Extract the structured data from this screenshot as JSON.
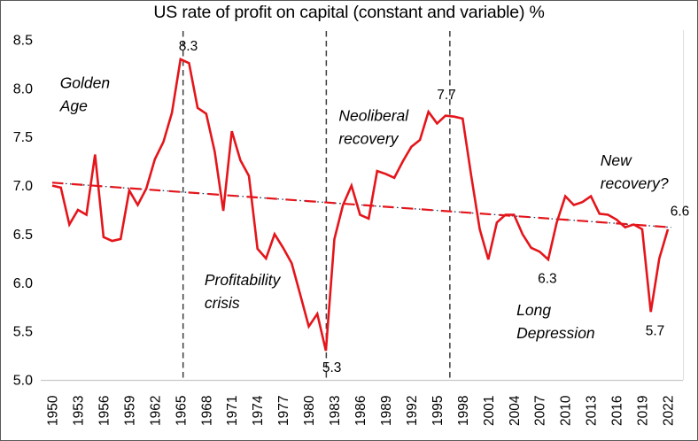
{
  "title": "US rate of profit on capital (constant and variable) %",
  "chart_data": {
    "type": "line",
    "title": "US rate of profit on capital (constant and variable) %",
    "xlabel": "",
    "ylabel": "",
    "ylim": [
      5.0,
      8.5
    ],
    "y_ticks": [
      8.5,
      8.0,
      7.5,
      7.0,
      6.5,
      6.0,
      5.5,
      5.0
    ],
    "x_ticks": [
      1950,
      1953,
      1956,
      1959,
      1962,
      1965,
      1968,
      1971,
      1974,
      1977,
      1980,
      1983,
      1986,
      1989,
      1992,
      1995,
      1998,
      2001,
      2004,
      2007,
      2010,
      2013,
      2016,
      2019,
      2022
    ],
    "grid": false,
    "legend": false,
    "line_color": "#e4151b",
    "vertical_line_color": "#3d3d3d",
    "axis_line_color": "#c9c9c9",
    "series": [
      {
        "name": "US rate of profit %",
        "x": [
          1950,
          1951,
          1952,
          1953,
          1954,
          1955,
          1956,
          1957,
          1958,
          1959,
          1960,
          1961,
          1962,
          1963,
          1964,
          1965,
          1966,
          1967,
          1968,
          1969,
          1970,
          1971,
          1972,
          1973,
          1974,
          1975,
          1976,
          1977,
          1978,
          1979,
          1980,
          1981,
          1982,
          1983,
          1984,
          1985,
          1986,
          1987,
          1988,
          1989,
          1990,
          1991,
          1992,
          1993,
          1994,
          1995,
          1996,
          1997,
          1998,
          1999,
          2000,
          2001,
          2002,
          2003,
          2004,
          2005,
          2006,
          2007,
          2008,
          2009,
          2010,
          2011,
          2012,
          2013,
          2014,
          2015,
          2016,
          2017,
          2018,
          2019,
          2020,
          2021,
          2022
        ],
        "values": [
          7.0,
          6.98,
          6.6,
          6.75,
          6.7,
          7.32,
          6.47,
          6.43,
          6.45,
          6.95,
          6.8,
          6.97,
          7.27,
          7.45,
          7.75,
          8.3,
          8.26,
          7.8,
          7.74,
          7.35,
          6.74,
          7.56,
          7.26,
          7.1,
          6.35,
          6.25,
          6.5,
          6.36,
          6.2,
          5.88,
          5.55,
          5.68,
          5.3,
          6.45,
          6.8,
          7.0,
          6.7,
          6.66,
          7.15,
          7.12,
          7.08,
          7.25,
          7.4,
          7.47,
          7.76,
          7.64,
          7.72,
          7.71,
          7.69,
          7.1,
          6.55,
          6.24,
          6.62,
          6.7,
          6.7,
          6.5,
          6.36,
          6.32,
          6.24,
          6.62,
          6.89,
          6.8,
          6.83,
          6.89,
          6.71,
          6.7,
          6.65,
          6.57,
          6.6,
          6.55,
          5.7,
          6.25,
          6.55
        ]
      }
    ],
    "trend_line": {
      "style": "dash-dot-dot",
      "color": "#e4151b",
      "dot_color": "#1f3a63",
      "x1": 1950,
      "y1": 7.03,
      "x2": 2022.4,
      "y2": 6.57
    },
    "vertical_dashed_lines": [
      {
        "year": 1965.3
      },
      {
        "year": 1982.05
      },
      {
        "year": 1996.5
      }
    ],
    "point_labels": [
      {
        "text": "8.3",
        "year": 1965.9,
        "value": 8.44
      },
      {
        "text": "5.3",
        "year": 1982.7,
        "value": 5.13
      },
      {
        "text": "7.7",
        "year": 1996.1,
        "value": 7.94
      },
      {
        "text": "6.3",
        "year": 2007.9,
        "value": 6.05
      },
      {
        "text": "5.7",
        "year": 2020.5,
        "value": 5.51
      },
      {
        "text": "6.6",
        "year": 2023.4,
        "value": 6.74
      }
    ],
    "annotations": [
      {
        "name": "golden-age",
        "lines": [
          "Golden",
          "Age"
        ],
        "year": 1950.9,
        "value": 8.06
      },
      {
        "name": "profitability-crisis",
        "lines": [
          "Profitability",
          "crisis"
        ],
        "year": 1967.8,
        "value": 6.03
      },
      {
        "name": "neoliberal-recovery",
        "lines": [
          "Neoliberal",
          "recovery"
        ],
        "year": 1983.5,
        "value": 7.72
      },
      {
        "name": "long-depression",
        "lines": [
          "Long",
          "Depression"
        ],
        "year": 2004.3,
        "value": 5.72
      },
      {
        "name": "new-recovery",
        "lines": [
          "New",
          "recovery?"
        ],
        "year": 2014.1,
        "value": 7.26
      }
    ]
  }
}
